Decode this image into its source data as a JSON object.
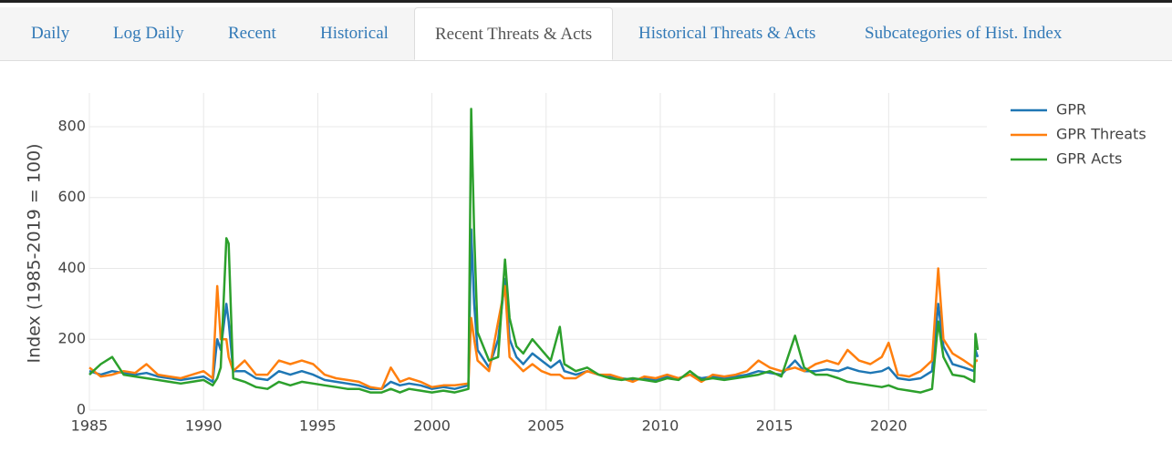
{
  "tabs": [
    "Daily",
    "Log Daily",
    "Recent",
    "Historical",
    "Recent Threats & Acts",
    "Historical Threats & Acts",
    "Subcategories of Hist. Index"
  ],
  "active_tab": 4,
  "chart_data": {
    "type": "line",
    "y_label": "Index (1985-2019 = 100)",
    "x": [
      1985,
      1985.5,
      1986,
      1986.5,
      1987,
      1987.5,
      1988,
      1988.5,
      1989,
      1989.5,
      1990,
      1990.4,
      1990.6,
      1990.75,
      1991.0,
      1991.1,
      1991.3,
      1991.8,
      1992.3,
      1992.8,
      1993.3,
      1993.8,
      1994.3,
      1994.8,
      1995.3,
      1995.8,
      1996.3,
      1996.8,
      1997.3,
      1997.8,
      1998.2,
      1998.6,
      1999,
      1999.5,
      2000,
      2000.5,
      2001,
      2001.6,
      2001.72,
      2001.85,
      2002,
      2002.5,
      2002.9,
      2003.2,
      2003.4,
      2003.7,
      2004,
      2004.4,
      2004.8,
      2005.2,
      2005.6,
      2005.8,
      2006.3,
      2006.8,
      2007.3,
      2007.8,
      2008.3,
      2008.8,
      2009.3,
      2009.8,
      2010.3,
      2010.8,
      2011.3,
      2011.8,
      2012.3,
      2012.8,
      2013.3,
      2013.8,
      2014.3,
      2014.8,
      2015.3,
      2015.9,
      2016.3,
      2016.8,
      2017.3,
      2017.8,
      2018.2,
      2018.7,
      2019.2,
      2019.7,
      2020.0,
      2020.4,
      2020.9,
      2021.4,
      2021.9,
      2022.17,
      2022.4,
      2022.8,
      2023.3,
      2023.75,
      2023.8,
      2023.9
    ],
    "series": [
      {
        "name": "GPR",
        "color": "#1f77b4",
        "values": [
          110,
          100,
          110,
          105,
          100,
          105,
          95,
          90,
          85,
          90,
          95,
          80,
          200,
          170,
          300,
          250,
          110,
          110,
          90,
          85,
          110,
          100,
          110,
          100,
          85,
          80,
          75,
          70,
          60,
          60,
          80,
          70,
          75,
          70,
          60,
          65,
          60,
          70,
          510,
          300,
          170,
          120,
          200,
          370,
          200,
          150,
          130,
          160,
          140,
          120,
          140,
          110,
          100,
          110,
          100,
          95,
          90,
          85,
          90,
          85,
          95,
          90,
          100,
          90,
          95,
          90,
          95,
          100,
          110,
          105,
          100,
          140,
          110,
          110,
          115,
          110,
          120,
          110,
          105,
          110,
          120,
          90,
          85,
          90,
          110,
          300,
          180,
          130,
          120,
          110,
          170,
          150
        ]
      },
      {
        "name": "GPR Threats",
        "color": "#ff7f0e",
        "values": [
          120,
          95,
          100,
          110,
          105,
          130,
          100,
          95,
          90,
          100,
          110,
          90,
          350,
          200,
          200,
          150,
          110,
          140,
          100,
          100,
          140,
          130,
          140,
          130,
          100,
          90,
          85,
          80,
          65,
          60,
          120,
          80,
          90,
          80,
          65,
          70,
          70,
          75,
          260,
          200,
          140,
          110,
          250,
          350,
          150,
          130,
          110,
          130,
          110,
          100,
          100,
          90,
          90,
          110,
          100,
          100,
          90,
          80,
          95,
          90,
          100,
          90,
          100,
          80,
          100,
          95,
          100,
          110,
          140,
          120,
          110,
          120,
          110,
          130,
          140,
          130,
          170,
          140,
          130,
          150,
          190,
          100,
          95,
          110,
          140,
          400,
          200,
          160,
          140,
          120,
          140,
          140
        ]
      },
      {
        "name": "GPR Acts",
        "color": "#2ca02c",
        "values": [
          100,
          130,
          150,
          100,
          95,
          90,
          85,
          80,
          75,
          80,
          85,
          70,
          90,
          120,
          485,
          470,
          90,
          80,
          65,
          60,
          80,
          70,
          80,
          75,
          70,
          65,
          60,
          60,
          50,
          50,
          60,
          50,
          60,
          55,
          50,
          55,
          50,
          60,
          850,
          500,
          220,
          140,
          150,
          425,
          260,
          180,
          160,
          200,
          170,
          140,
          235,
          130,
          110,
          120,
          100,
          90,
          85,
          90,
          85,
          80,
          90,
          85,
          110,
          85,
          90,
          85,
          90,
          95,
          100,
          110,
          95,
          210,
          120,
          100,
          100,
          90,
          80,
          75,
          70,
          65,
          70,
          60,
          55,
          50,
          60,
          250,
          150,
          100,
          95,
          80,
          215,
          170
        ]
      }
    ],
    "xlim": [
      1985,
      2024.3
    ],
    "ylim": [
      0,
      895
    ],
    "xticks": [
      1985,
      1990,
      1995,
      2000,
      2005,
      2010,
      2015,
      2020
    ],
    "yticks": [
      0,
      200,
      400,
      600,
      800
    ],
    "grid": true,
    "legend": "right"
  }
}
